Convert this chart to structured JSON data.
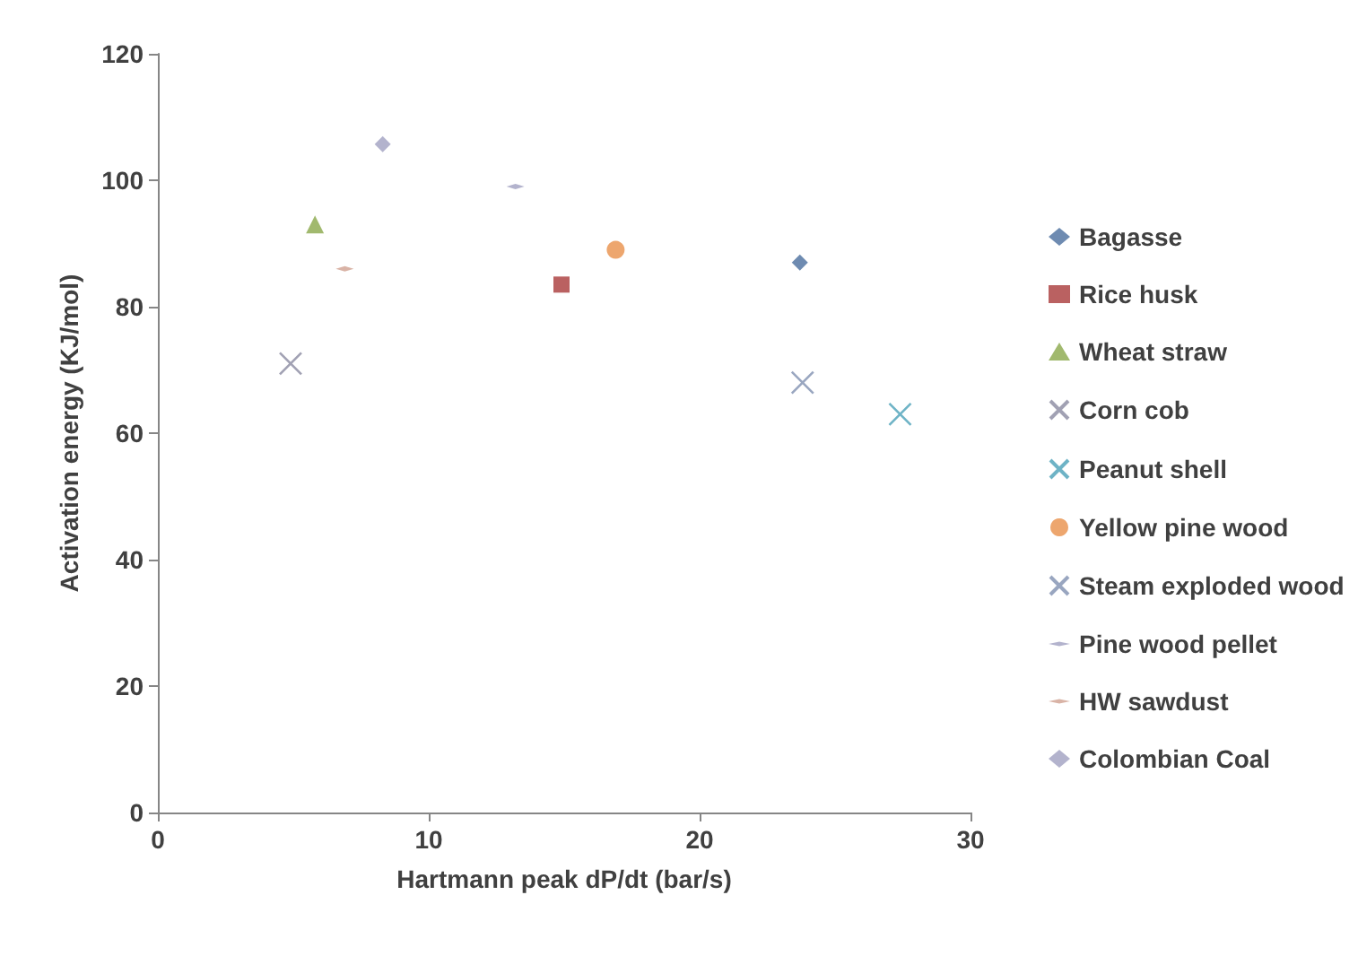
{
  "chart_data": {
    "type": "scatter",
    "xlabel": "Hartmann peak dP/dt (bar/s)",
    "ylabel": "Activation energy (KJ/mol)",
    "xlim": [
      0,
      30
    ],
    "xticks": [
      0,
      10,
      20,
      30
    ],
    "ylim": [
      0,
      120
    ],
    "yticks": [
      0,
      20,
      40,
      60,
      80,
      100,
      120
    ],
    "grid": false,
    "legend": "right",
    "series": [
      {
        "name": "Bagasse",
        "color": "#4a6e9e",
        "marker": "diamond",
        "x": [
          23.7
        ],
        "values": [
          87
        ]
      },
      {
        "name": "Rice husk",
        "color": "#a93a3a",
        "marker": "square",
        "x": [
          14.9
        ],
        "values": [
          83.5
        ]
      },
      {
        "name": "Wheat straw",
        "color": "#8aa84a",
        "marker": "triangle",
        "x": [
          5.8
        ],
        "values": [
          93
        ]
      },
      {
        "name": "Corn cob",
        "color": "#8a8aa0",
        "marker": "cross",
        "x": [
          4.9
        ],
        "values": [
          71
        ]
      },
      {
        "name": "Peanut shell",
        "color": "#4aa0b8",
        "marker": "cross",
        "x": [
          27.4
        ],
        "values": [
          63
        ]
      },
      {
        "name": "Yellow pine wood",
        "color": "#e8904a",
        "marker": "circle",
        "x": [
          16.9
        ],
        "values": [
          89
        ]
      },
      {
        "name": "Steam exploded wood",
        "color": "#8090b0",
        "marker": "cross",
        "x": [
          23.8
        ],
        "values": [
          68
        ]
      },
      {
        "name": "Pine wood pellet",
        "color": "#a0a0c0",
        "x": [
          13.2
        ],
        "values": [
          99
        ]
      },
      {
        "name": "HW sawdust",
        "color": "#d0a090",
        "x": [
          6.9
        ],
        "values": [
          86
        ]
      },
      {
        "name": "Colombian Coal",
        "color": "#a0a0c0",
        "marker": "diamond",
        "x": [
          8.3
        ],
        "values": [
          105.7
        ]
      }
    ]
  }
}
